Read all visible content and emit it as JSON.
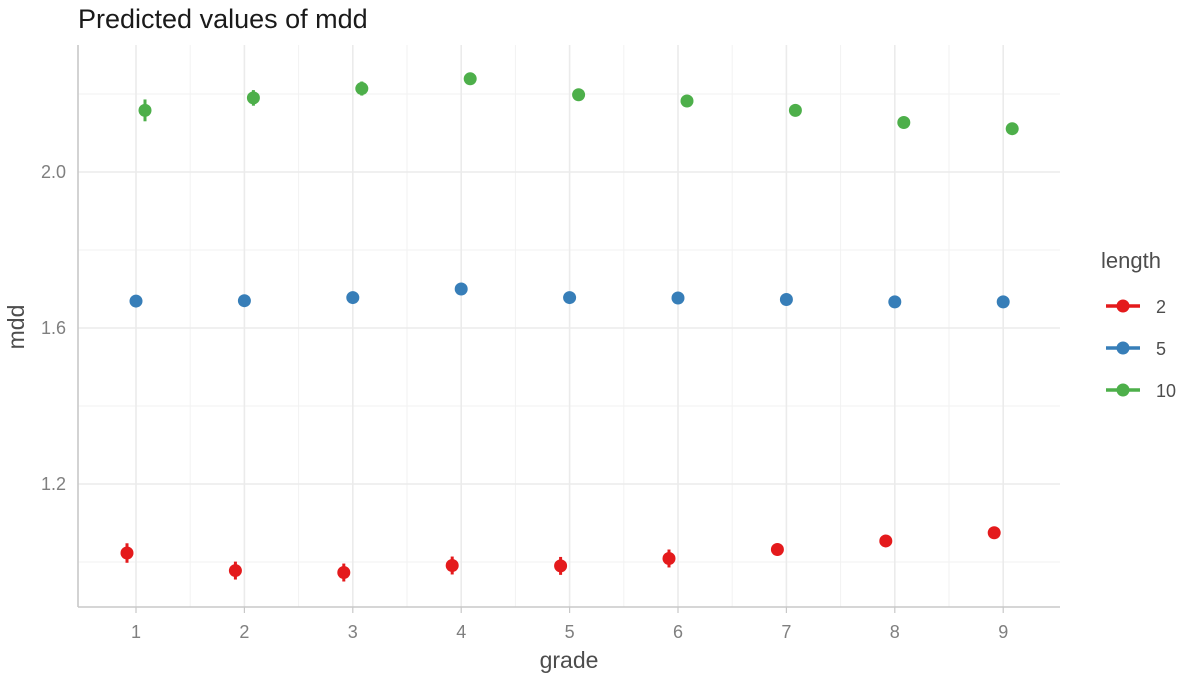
{
  "chart_data": {
    "type": "scatter",
    "title": "Predicted values of mdd",
    "xlabel": "grade",
    "ylabel": "mdd",
    "categories": [
      "1",
      "2",
      "3",
      "4",
      "5",
      "6",
      "7",
      "8",
      "9"
    ],
    "y_ticks": [
      "1.2",
      "1.6",
      "2.0"
    ],
    "y_tick_values": [
      1.2,
      1.6,
      2.0
    ],
    "ylim": [
      0.889,
      2.33
    ],
    "grid": true,
    "legend": {
      "title": "length",
      "position": "right"
    },
    "series": [
      {
        "name": "2",
        "color": "#e41a1c",
        "values": [
          1.023,
          0.978,
          0.973,
          0.991,
          0.99,
          1.009,
          1.032,
          1.054,
          1.075
        ],
        "ci": [
          [
            0.998,
            1.048
          ],
          [
            0.955,
            1.001
          ],
          [
            0.95,
            0.996
          ],
          [
            0.968,
            1.014
          ],
          [
            0.967,
            1.013
          ],
          [
            0.986,
            1.032
          ],
          [
            1.023,
            1.041
          ],
          [
            1.045,
            1.063
          ],
          [
            1.066,
            1.084
          ]
        ]
      },
      {
        "name": "5",
        "color": "#377eb8",
        "values": [
          1.669,
          1.67,
          1.678,
          1.7,
          1.678,
          1.677,
          1.673,
          1.667,
          1.667
        ],
        "ci": [
          [
            1.659,
            1.679
          ],
          [
            1.662,
            1.678
          ],
          [
            1.67,
            1.686
          ],
          [
            1.692,
            1.708
          ],
          [
            1.67,
            1.686
          ],
          [
            1.669,
            1.685
          ],
          [
            1.666,
            1.68
          ],
          [
            1.66,
            1.674
          ],
          [
            1.66,
            1.674
          ]
        ]
      },
      {
        "name": "10",
        "color": "#4daf4a",
        "values": [
          2.158,
          2.19,
          2.214,
          2.239,
          2.198,
          2.182,
          2.158,
          2.127,
          2.111
        ],
        "ci": [
          [
            2.13,
            2.186
          ],
          [
            2.17,
            2.21
          ],
          [
            2.196,
            2.232
          ],
          [
            2.225,
            2.253
          ],
          [
            2.186,
            2.21
          ],
          [
            2.17,
            2.194
          ],
          [
            2.15,
            2.166
          ],
          [
            2.119,
            2.135
          ],
          [
            2.103,
            2.119
          ]
        ]
      }
    ]
  }
}
